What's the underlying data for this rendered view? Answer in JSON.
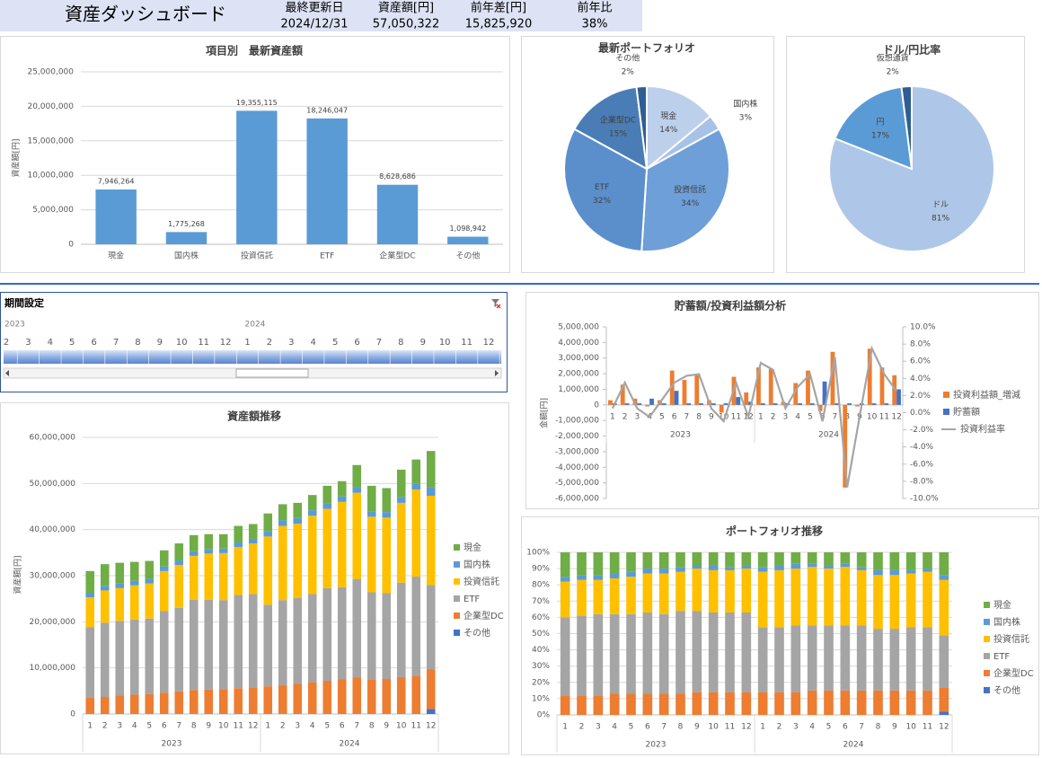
{
  "header": {
    "title": "資産ダッシュボード",
    "kpis": [
      {
        "label": "最終更新日",
        "value": "2024/12/31"
      },
      {
        "label": "資産額[円]",
        "value": "57,050,322"
      },
      {
        "label": "前年差[円]",
        "value": "15,825,920"
      },
      {
        "label": "前年比",
        "value": "38%"
      }
    ]
  },
  "slicer": {
    "title": "期間設定",
    "years": [
      "2023",
      "2024"
    ],
    "months": [
      "2",
      "3",
      "4",
      "5",
      "6",
      "7",
      "8",
      "9",
      "10",
      "11",
      "12",
      "1",
      "2",
      "3",
      "4",
      "5",
      "6",
      "7",
      "8",
      "9",
      "10",
      "11",
      "12"
    ]
  },
  "chart_data": [
    {
      "type": "bar",
      "title": "項目別　最新資産額",
      "ylabel": "資産額[円]",
      "categories": [
        "現金",
        "国内株",
        "投資信託",
        "ETF",
        "企業型DC",
        "その他"
      ],
      "values": [
        7946264,
        1775268,
        19355115,
        18246047,
        8628686,
        1098942
      ],
      "value_labels": [
        "7,946,264",
        "1,775,268",
        "19,355,115",
        "18,246,047",
        "8,628,686",
        "1,098,942"
      ],
      "color": "#5b9bd5",
      "ylim": [
        0,
        25000000
      ],
      "yticks": [
        0,
        {
          "value": 5000000,
          "label": "5,000,000"
        },
        {
          "value": 10000000,
          "label": "10,000,000"
        },
        {
          "value": 15000000,
          "label": "15,000,000"
        },
        {
          "value": 20000000,
          "label": "20,000,000"
        },
        {
          "value": 25000000,
          "label": "25,000,000"
        }
      ],
      "grid": true
    },
    {
      "type": "pie",
      "title": "最新ポートフォリオ",
      "categories": [
        "現金",
        "国内株",
        "投資信託",
        "ETF",
        "企業型DC",
        "その他"
      ],
      "values": [
        14,
        3,
        34,
        32,
        15,
        2
      ],
      "value_labels": [
        "14%",
        "3%",
        "34%",
        "32%",
        "15%",
        "2%"
      ],
      "colors": [
        "#bcd0ec",
        "#a7c2e6",
        "#6e9fd8",
        "#5b8fcc",
        "#4a7db6",
        "#2f5f91"
      ]
    },
    {
      "type": "pie",
      "title": "ドル/円比率",
      "categories": [
        "ドル",
        "円",
        "仮想通貨"
      ],
      "values": [
        81,
        17,
        2
      ],
      "value_labels": [
        "81%",
        "17%",
        "2%"
      ],
      "colors": [
        "#aec7e8",
        "#5b9bd5",
        "#2f5f91"
      ]
    },
    {
      "type": "combo",
      "title": "貯蓄額/投資利益額分析",
      "ylabel": "金額[円]",
      "categories": [
        "1",
        "2",
        "3",
        "4",
        "5",
        "6",
        "7",
        "8",
        "9",
        "10",
        "11",
        "12",
        "1",
        "2",
        "3",
        "4",
        "5",
        "6",
        "7",
        "8",
        "9",
        "10",
        "11",
        "12"
      ],
      "groups": [
        "2023",
        "2024"
      ],
      "series": [
        {
          "name": "投資利益額_増減",
          "color": "#ed7d31",
          "type": "bar",
          "values": [
            300000,
            1300000,
            400000,
            -100000,
            300000,
            2200000,
            1600000,
            1900000,
            300000,
            -500000,
            1800000,
            800000,
            2400000,
            2300000,
            200000,
            1400000,
            2200000,
            -400000,
            3400000,
            -5300000,
            -100000,
            3600000,
            2400000,
            1900000
          ]
        },
        {
          "name": "貯蓄額",
          "color": "#4472c4",
          "type": "bar",
          "values": [
            100000,
            100000,
            100000,
            400000,
            100000,
            900000,
            100000,
            100000,
            100000,
            100000,
            500000,
            200000,
            100000,
            100000,
            100000,
            100000,
            100000,
            1500000,
            100000,
            100000,
            100000,
            100000,
            100000,
            1000000
          ]
        },
        {
          "name": "投資利益率",
          "color": "#a5a5a5",
          "type": "line",
          "axis": "y2",
          "values": [
            0.5,
            3.5,
            0.5,
            -0.5,
            1.5,
            3.5,
            4.3,
            4.5,
            0.5,
            -1,
            3.5,
            -0.5,
            5.8,
            5,
            0.5,
            3,
            4.5,
            -1,
            6.5,
            -8.7,
            -0.5,
            7.5,
            4.5,
            2.5
          ]
        }
      ],
      "ylim": [
        -6000000,
        5000000
      ],
      "yticks": [
        {
          "value": -6000000,
          "label": "-6,000,000"
        },
        {
          "value": -5000000,
          "label": "-5,000,000"
        },
        {
          "value": -4000000,
          "label": "-4,000,000"
        },
        {
          "value": -3000000,
          "label": "-3,000,000"
        },
        {
          "value": -2000000,
          "label": "-2,000,000"
        },
        {
          "value": -1000000,
          "label": "-1,000,000"
        },
        0,
        {
          "value": 1000000,
          "label": "1,000,000"
        },
        {
          "value": 2000000,
          "label": "2,000,000"
        },
        {
          "value": 3000000,
          "label": "3,000,000"
        },
        {
          "value": 4000000,
          "label": "4,000,000"
        },
        {
          "value": 5000000,
          "label": "5,000,000"
        }
      ],
      "y2lim": [
        -10,
        10
      ],
      "y2ticks": [
        {
          "value": -10,
          "label": "-10.0%"
        },
        {
          "value": -8,
          "label": "-8.0%"
        },
        {
          "value": -6,
          "label": "-6.0%"
        },
        {
          "value": -4,
          "label": "-4.0%"
        },
        {
          "value": -2,
          "label": "-2.0%"
        },
        {
          "value": 0,
          "label": "0.0%"
        },
        {
          "value": 2,
          "label": "2.0%"
        },
        {
          "value": 4,
          "label": "4.0%"
        },
        {
          "value": 6,
          "label": "6.0%"
        },
        {
          "value": 8,
          "label": "8.0%"
        },
        {
          "value": 10,
          "label": "10.0%"
        }
      ],
      "grid": false,
      "legend": "right"
    },
    {
      "type": "stacked_bar",
      "title": "資産額推移",
      "ylabel": "資産額[円]",
      "categories": [
        "1",
        "2",
        "3",
        "4",
        "5",
        "6",
        "7",
        "8",
        "9",
        "10",
        "11",
        "12",
        "1",
        "2",
        "3",
        "4",
        "5",
        "6",
        "7",
        "8",
        "9",
        "10",
        "11",
        "12"
      ],
      "groups": [
        "2023",
        "2024"
      ],
      "series": [
        {
          "name": "現金",
          "color": "#70ad47",
          "values": [
            4700000,
            4700000,
            4500000,
            4100000,
            3900000,
            3500000,
            3700000,
            3500000,
            3200000,
            3100000,
            3600000,
            3200000,
            3800000,
            3500000,
            3300000,
            3300000,
            3800000,
            3300000,
            4800000,
            5500000,
            5200000,
            6000000,
            5300000,
            7946264
          ]
        },
        {
          "name": "国内株",
          "color": "#5b9bd5",
          "values": [
            1000000,
            1000000,
            1000000,
            1000000,
            1000000,
            1000000,
            1000000,
            1000000,
            1000000,
            1000000,
            1000000,
            1000000,
            1200000,
            1200000,
            1200000,
            1200000,
            1200000,
            1200000,
            1200000,
            1200000,
            1200000,
            1200000,
            1200000,
            1775268
          ]
        },
        {
          "name": "投資信託",
          "color": "#ffc000",
          "values": [
            6500000,
            7000000,
            7100000,
            7400000,
            7600000,
            8700000,
            9300000,
            9500000,
            10000000,
            10200000,
            10400000,
            11000000,
            14800000,
            16100000,
            16100000,
            17000000,
            17200000,
            18500000,
            18700000,
            16400000,
            16400000,
            17300000,
            18900000,
            19355115
          ]
        },
        {
          "name": "ETF",
          "color": "#a5a5a5",
          "values": [
            15300000,
            16100000,
            16200000,
            16300000,
            16400000,
            17700000,
            18100000,
            19600000,
            19500000,
            19300000,
            20200000,
            20200000,
            17700000,
            18400000,
            18600000,
            19100000,
            20100000,
            20000000,
            21400000,
            19000000,
            18600000,
            20500000,
            21500000,
            18246047
          ]
        },
        {
          "name": "企業型DC",
          "color": "#ed7d31",
          "values": [
            3500000,
            3700000,
            4000000,
            4200000,
            4300000,
            4600000,
            4900000,
            5200000,
            5300000,
            5400000,
            5600000,
            5800000,
            6000000,
            6300000,
            6600000,
            6900000,
            7200000,
            7500000,
            7900000,
            7400000,
            7600000,
            8000000,
            8300000,
            8628686
          ]
        },
        {
          "name": "その他",
          "color": "#4472c4",
          "values": [
            0,
            0,
            0,
            0,
            0,
            0,
            0,
            0,
            0,
            0,
            0,
            0,
            0,
            0,
            0,
            0,
            0,
            0,
            0,
            0,
            0,
            0,
            0,
            1098942
          ]
        }
      ],
      "ylim": [
        0,
        60000000
      ],
      "yticks": [
        0,
        {
          "value": 10000000,
          "label": "10,000,000"
        },
        {
          "value": 20000000,
          "label": "20,000,000"
        },
        {
          "value": 30000000,
          "label": "30,000,000"
        },
        {
          "value": 40000000,
          "label": "40,000,000"
        },
        {
          "value": 50000000,
          "label": "50,000,000"
        },
        {
          "value": 60000000,
          "label": "60,000,000"
        }
      ],
      "grid": true,
      "legend": "right"
    },
    {
      "type": "stacked_bar",
      "title": "ポートフォリオ推移",
      "categories": [
        "1",
        "2",
        "3",
        "4",
        "5",
        "6",
        "7",
        "8",
        "9",
        "10",
        "11",
        "12",
        "1",
        "2",
        "3",
        "4",
        "5",
        "6",
        "7",
        "8",
        "9",
        "10",
        "11",
        "12"
      ],
      "groups": [
        "2023",
        "2024"
      ],
      "series": [
        {
          "name": "現金",
          "color": "#70ad47",
          "values": [
            15,
            14,
            14,
            13,
            12,
            10,
            10,
            9,
            8,
            8,
            9,
            8,
            9,
            8,
            7,
            7,
            8,
            7,
            9,
            11,
            11,
            11,
            10,
            14
          ]
        },
        {
          "name": "国内株",
          "color": "#5b9bd5",
          "values": [
            3,
            3,
            3,
            3,
            3,
            3,
            3,
            3,
            2,
            3,
            2,
            2,
            3,
            3,
            3,
            2,
            2,
            2,
            2,
            3,
            3,
            2,
            2,
            3
          ]
        },
        {
          "name": "投資信託",
          "color": "#ffc000",
          "values": [
            22,
            22,
            21,
            22,
            23,
            24,
            25,
            24,
            26,
            26,
            26,
            27,
            34,
            35,
            35,
            36,
            35,
            36,
            34,
            33,
            33,
            33,
            34,
            34
          ]
        },
        {
          "name": "ETF",
          "color": "#a5a5a5",
          "values": [
            48,
            49,
            50,
            49,
            49,
            50,
            49,
            51,
            50,
            49,
            49,
            49,
            40,
            40,
            41,
            40,
            40,
            40,
            40,
            38,
            38,
            39,
            39,
            32
          ]
        },
        {
          "name": "企業型DC",
          "color": "#ed7d31",
          "values": [
            12,
            12,
            12,
            13,
            13,
            13,
            13,
            13,
            14,
            14,
            14,
            14,
            14,
            14,
            14,
            15,
            15,
            15,
            15,
            15,
            15,
            15,
            15,
            15
          ]
        },
        {
          "name": "その他",
          "color": "#4472c4",
          "values": [
            0,
            0,
            0,
            0,
            0,
            0,
            0,
            0,
            0,
            0,
            0,
            0,
            0,
            0,
            0,
            0,
            0,
            0,
            0,
            0,
            0,
            0,
            0,
            2
          ]
        }
      ],
      "ylim": [
        0,
        100
      ],
      "yticks": [
        {
          "value": 0,
          "label": "0%"
        },
        {
          "value": 10,
          "label": "10%"
        },
        {
          "value": 20,
          "label": "20%"
        },
        {
          "value": 30,
          "label": "30%"
        },
        {
          "value": 40,
          "label": "40%"
        },
        {
          "value": 50,
          "label": "50%"
        },
        {
          "value": 60,
          "label": "60%"
        },
        {
          "value": 70,
          "label": "70%"
        },
        {
          "value": 80,
          "label": "80%"
        },
        {
          "value": 90,
          "label": "90%"
        },
        {
          "value": 100,
          "label": "100%"
        }
      ],
      "grid": true,
      "legend": "right"
    }
  ]
}
